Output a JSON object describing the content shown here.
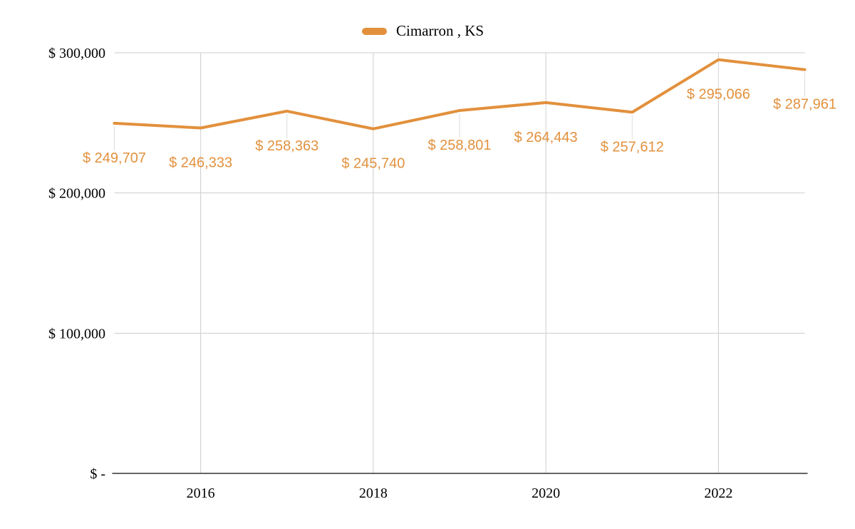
{
  "chart_data": {
    "type": "line",
    "title": "",
    "legend": {
      "label": "Cimarron , KS",
      "position": "top"
    },
    "x": [
      2015,
      2016,
      2017,
      2018,
      2019,
      2020,
      2021,
      2022,
      2023
    ],
    "series": [
      {
        "name": "Cimarron , KS",
        "values": [
          249707,
          246333,
          258363,
          245740,
          258801,
          264443,
          257612,
          295066,
          287961
        ]
      }
    ],
    "point_labels": [
      "$ 249,707",
      "$ 246,333",
      "$ 258,363",
      "$ 245,740",
      "$ 258,801",
      "$ 264,443",
      "$ 257,612",
      "$ 295,066",
      "$ 287,961"
    ],
    "y_ticks": [
      {
        "value": 0,
        "label": "$ -"
      },
      {
        "value": 100000,
        "label": "$ 100,000"
      },
      {
        "value": 200000,
        "label": "$ 200,000"
      },
      {
        "value": 300000,
        "label": "$ 300,000"
      }
    ],
    "x_ticks": [
      {
        "value": 2016,
        "label": "2016"
      },
      {
        "value": 2018,
        "label": "2018"
      },
      {
        "value": 2020,
        "label": "2020"
      },
      {
        "value": 2022,
        "label": "2022"
      }
    ],
    "xlim": [
      2015,
      2023
    ],
    "ylim": [
      0,
      300000
    ],
    "grid": true,
    "colors": {
      "series": "#E2903C",
      "label": "#E2913E",
      "gridline": "#cccccc",
      "leader": "#dcdcdc",
      "axis": "#333333",
      "text": "#000000",
      "background": "#ffffff"
    }
  }
}
